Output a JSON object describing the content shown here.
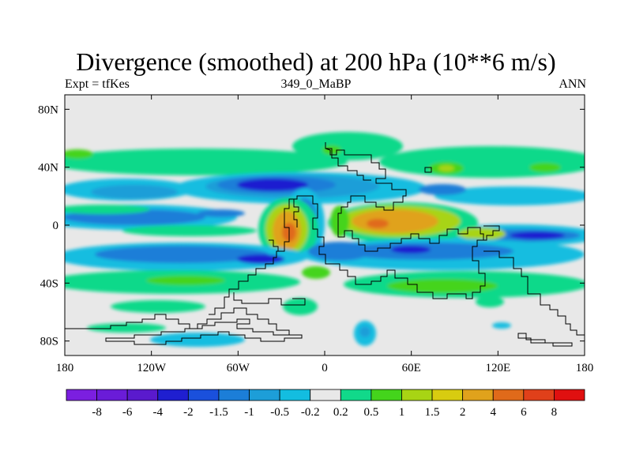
{
  "title": "Divergence (smoothed) at 200 hPa (10**6 m/s)",
  "subtitle_left": "Expt = tfKes",
  "subtitle_center": "349_0_MaBP",
  "subtitle_right": "ANN",
  "map": {
    "type": "filled-contour-map",
    "lon_range": [
      -180,
      180
    ],
    "lat_range": [
      -90,
      90
    ],
    "x_ticks": [
      {
        "value": -180,
        "label": "180"
      },
      {
        "value": -120,
        "label": "120W"
      },
      {
        "value": -60,
        "label": "60W"
      },
      {
        "value": 0,
        "label": "0"
      },
      {
        "value": 60,
        "label": "60E"
      },
      {
        "value": 120,
        "label": "120E"
      },
      {
        "value": 180,
        "label": "180"
      }
    ],
    "y_ticks": [
      {
        "value": 80,
        "label": "80N"
      },
      {
        "value": 40,
        "label": "40N"
      },
      {
        "value": 0,
        "label": "0"
      },
      {
        "value": -40,
        "label": "40S"
      },
      {
        "value": -80,
        "label": "80S"
      }
    ]
  },
  "colorbar": {
    "labels": [
      "-8",
      "-6",
      "-4",
      "-2",
      "-1.5",
      "-1",
      "-0.5",
      "-0.2",
      "0.2",
      "0.5",
      "1",
      "1.5",
      "2",
      "4",
      "6",
      "8"
    ],
    "colors": [
      "#7b1fe0",
      "#6a1cd8",
      "#5a1acd",
      "#1f1fd0",
      "#1a50dc",
      "#1c7ed8",
      "#1d9ed8",
      "#13bde0",
      "#e8e8e8",
      "#11d98a",
      "#44d41c",
      "#a8d414",
      "#d8cc10",
      "#e0a21c",
      "#e06a1a",
      "#e0401a",
      "#e01010"
    ]
  }
}
